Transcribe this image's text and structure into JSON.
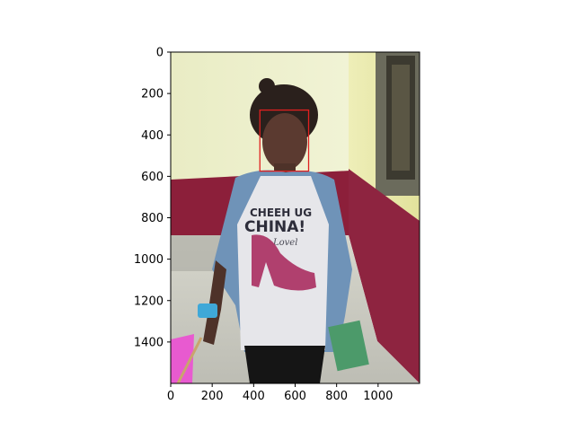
{
  "figure": {
    "image_description_icon": "photo-portrait-icon",
    "x_axis": {
      "ticks": [
        0,
        200,
        400,
        600,
        800,
        1000
      ],
      "range": [
        0,
        1200
      ]
    },
    "y_axis": {
      "ticks": [
        0,
        200,
        400,
        600,
        800,
        1000,
        1200,
        1400
      ],
      "range": [
        1600,
        0
      ]
    },
    "annotation_box": {
      "color": "#e02020",
      "x_range": [
        430,
        665
      ],
      "y_range": [
        280,
        575
      ]
    },
    "photo_text": {
      "shirt_line1": "CHEEH UG",
      "shirt_line2": "CHINA!",
      "shirt_line3": "Lovel"
    }
  }
}
